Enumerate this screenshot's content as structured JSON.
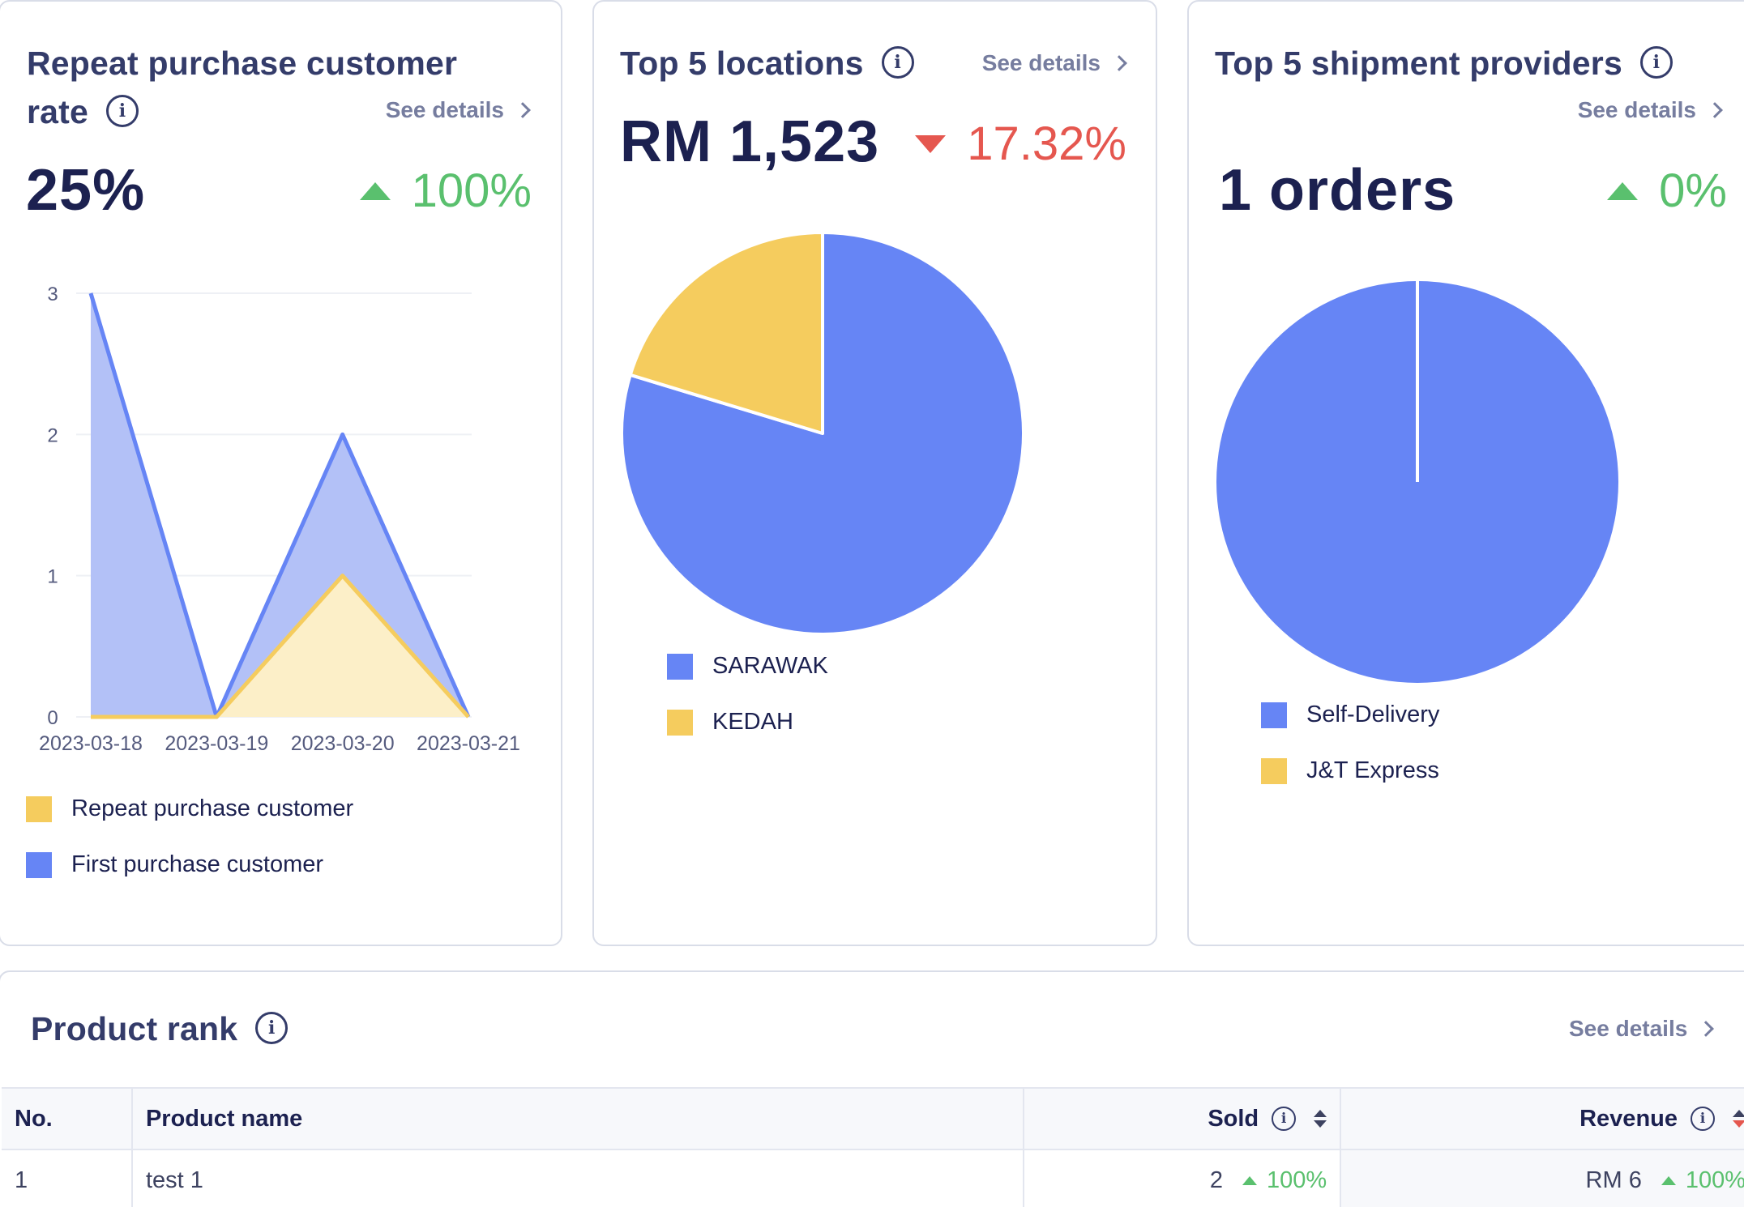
{
  "repeat_card": {
    "title": "Repeat purchase customer rate",
    "see_details": "See details",
    "value": "25%",
    "delta": "100%",
    "delta_direction": "up",
    "legend": [
      {
        "label": "Repeat purchase customer",
        "color": "#f5cc5e"
      },
      {
        "label": "First purchase customer",
        "color": "#6685f5"
      }
    ]
  },
  "locations_card": {
    "title": "Top 5 locations",
    "see_details": "See details",
    "value": "RM 1,523",
    "delta": "17.32%",
    "delta_direction": "down",
    "legend": [
      {
        "label": "SARAWAK",
        "color": "#6685f5"
      },
      {
        "label": "KEDAH",
        "color": "#f5cc5e"
      }
    ]
  },
  "shipment_card": {
    "title": "Top 5 shipment providers",
    "see_details": "See details",
    "value": "1 orders",
    "delta": "0%",
    "delta_direction": "up",
    "legend": [
      {
        "label": "Self-Delivery",
        "color": "#6685f5"
      },
      {
        "label": "J&T Express",
        "color": "#f5cc5e"
      }
    ]
  },
  "product_rank": {
    "title": "Product rank",
    "see_details": "See details",
    "columns": [
      "No.",
      "Product name",
      "Sold",
      "Revenue"
    ],
    "rows": [
      {
        "no": "1",
        "name": "test 1",
        "sold": "2",
        "sold_delta": "100%",
        "revenue": "RM 6",
        "revenue_delta": "100%"
      }
    ]
  },
  "chart_data": [
    {
      "type": "area",
      "x": [
        "2023-03-18",
        "2023-03-19",
        "2023-03-20",
        "2023-03-21"
      ],
      "ylim": [
        0,
        3
      ],
      "yticks": [
        "0",
        "1",
        "2",
        "3"
      ],
      "series": [
        {
          "name": "First purchase customer",
          "values": [
            3,
            0,
            2,
            0
          ],
          "color": "#6685f5"
        },
        {
          "name": "Repeat purchase customer",
          "values": [
            0,
            0,
            1,
            0
          ],
          "color": "#f5cc5e"
        }
      ]
    },
    {
      "type": "pie",
      "slices": [
        {
          "label": "SARAWAK",
          "value": 79.7,
          "color": "#6685f5"
        },
        {
          "label": "KEDAH",
          "value": 20.3,
          "color": "#f5cc5e"
        }
      ]
    },
    {
      "type": "pie",
      "slices": [
        {
          "label": "Self-Delivery",
          "value": 100,
          "color": "#6685f5"
        },
        {
          "label": "J&T Express",
          "value": 0,
          "color": "#f5cc5e"
        }
      ]
    }
  ]
}
